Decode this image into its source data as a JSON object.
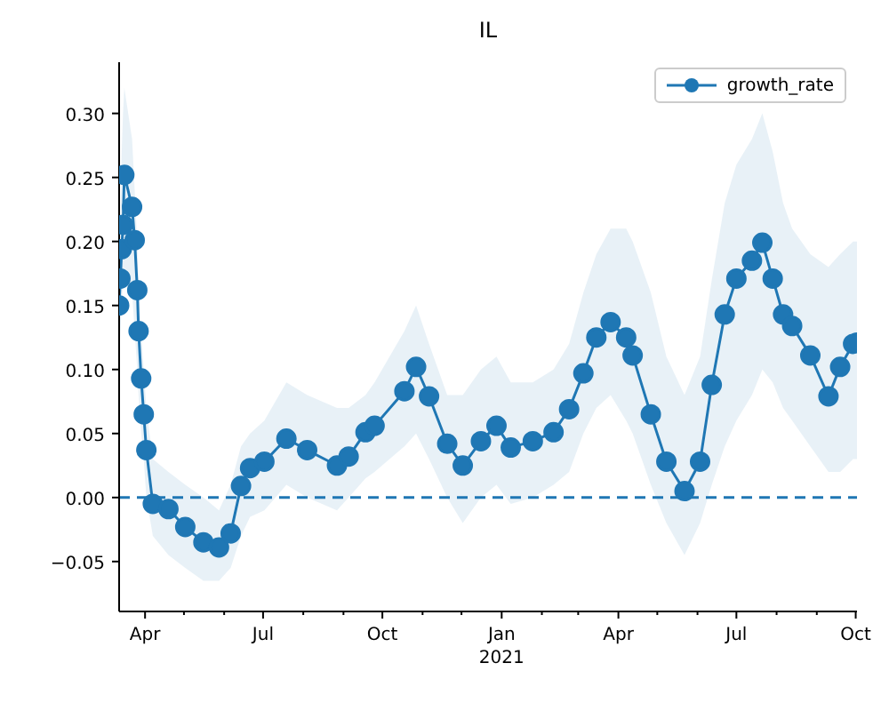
{
  "chart_data": {
    "type": "line",
    "title": "IL",
    "x": [
      "2020-03-12",
      "2020-03-13",
      "2020-03-14",
      "2020-03-15",
      "2020-03-16",
      "2020-03-22",
      "2020-03-24",
      "2020-03-26",
      "2020-03-27",
      "2020-03-29",
      "2020-03-31",
      "2020-04-02",
      "2020-04-07",
      "2020-04-19",
      "2020-05-02",
      "2020-05-16",
      "2020-05-28",
      "2020-06-06",
      "2020-06-14",
      "2020-06-21",
      "2020-07-02",
      "2020-07-19",
      "2020-08-04",
      "2020-08-27",
      "2020-09-05",
      "2020-09-18",
      "2020-09-25",
      "2020-10-18",
      "2020-10-27",
      "2020-11-06",
      "2020-11-20",
      "2020-12-02",
      "2020-12-16",
      "2020-12-28",
      "2021-01-08",
      "2021-01-25",
      "2021-02-10",
      "2021-02-22",
      "2021-03-05",
      "2021-03-15",
      "2021-03-26",
      "2021-04-07",
      "2021-04-12",
      "2021-04-26",
      "2021-05-08",
      "2021-05-22",
      "2021-06-03",
      "2021-06-12",
      "2021-06-22",
      "2021-07-01",
      "2021-07-13",
      "2021-07-21",
      "2021-07-29",
      "2021-08-06",
      "2021-08-13",
      "2021-08-27",
      "2021-09-10",
      "2021-09-19",
      "2021-09-29",
      "2021-10-02"
    ],
    "series": [
      {
        "name": "growth_rate",
        "color": "#1f77b4",
        "values": [
          0.15,
          0.171,
          0.194,
          0.213,
          0.252,
          0.227,
          0.201,
          0.162,
          0.13,
          0.093,
          0.065,
          0.037,
          -0.005,
          -0.009,
          -0.023,
          -0.035,
          -0.039,
          -0.028,
          0.009,
          0.023,
          0.028,
          0.046,
          0.037,
          0.025,
          0.032,
          0.051,
          0.056,
          0.083,
          0.102,
          0.079,
          0.042,
          0.025,
          0.044,
          0.056,
          0.039,
          0.044,
          0.051,
          0.069,
          0.097,
          0.125,
          0.137,
          0.125,
          0.111,
          0.065,
          0.028,
          0.005,
          0.028,
          0.088,
          0.143,
          0.171,
          0.185,
          0.199,
          0.171,
          0.143,
          0.134,
          0.111,
          0.079,
          0.102,
          0.12,
          0.121
        ],
        "lower": [
          0.11,
          0.13,
          0.15,
          0.17,
          0.18,
          0.16,
          0.13,
          0.1,
          0.08,
          0.05,
          0.03,
          0.0,
          -0.03,
          -0.045,
          -0.055,
          -0.065,
          -0.065,
          -0.055,
          -0.03,
          -0.015,
          -0.01,
          0.01,
          0.0,
          -0.01,
          0.0,
          0.015,
          0.02,
          0.04,
          0.05,
          0.03,
          0.0,
          -0.02,
          0.0,
          0.01,
          -0.005,
          0.0,
          0.01,
          0.02,
          0.05,
          0.07,
          0.08,
          0.06,
          0.05,
          0.01,
          -0.02,
          -0.045,
          -0.02,
          0.01,
          0.04,
          0.06,
          0.08,
          0.1,
          0.09,
          0.07,
          0.06,
          0.04,
          0.02,
          0.02,
          0.03,
          0.03
        ],
        "upper": [
          0.18,
          0.22,
          0.27,
          0.3,
          0.32,
          0.28,
          0.24,
          0.2,
          0.17,
          0.13,
          0.1,
          0.07,
          0.03,
          0.02,
          0.01,
          0.0,
          -0.01,
          0.01,
          0.04,
          0.05,
          0.06,
          0.09,
          0.08,
          0.07,
          0.07,
          0.08,
          0.09,
          0.13,
          0.15,
          0.12,
          0.08,
          0.08,
          0.1,
          0.11,
          0.09,
          0.09,
          0.1,
          0.12,
          0.16,
          0.19,
          0.21,
          0.21,
          0.2,
          0.16,
          0.11,
          0.08,
          0.11,
          0.17,
          0.23,
          0.26,
          0.28,
          0.3,
          0.27,
          0.23,
          0.21,
          0.19,
          0.18,
          0.19,
          0.2,
          0.2
        ]
      }
    ],
    "xlim": [
      "2020-03-12",
      "2021-10-02"
    ],
    "xticks": [
      {
        "value": "2020-04-01",
        "label": "Apr"
      },
      {
        "value": "2020-05-01",
        "label": null
      },
      {
        "value": "2020-06-01",
        "label": null
      },
      {
        "value": "2020-07-01",
        "label": "Jul"
      },
      {
        "value": "2020-08-01",
        "label": null
      },
      {
        "value": "2020-09-01",
        "label": null
      },
      {
        "value": "2020-10-01",
        "label": "Oct"
      },
      {
        "value": "2020-11-01",
        "label": null
      },
      {
        "value": "2020-12-01",
        "label": null
      },
      {
        "value": "2021-01-01",
        "label": "Jan\n2021"
      },
      {
        "value": "2021-02-01",
        "label": null
      },
      {
        "value": "2021-03-01",
        "label": null
      },
      {
        "value": "2021-04-01",
        "label": "Apr"
      },
      {
        "value": "2021-05-01",
        "label": null
      },
      {
        "value": "2021-06-01",
        "label": null
      },
      {
        "value": "2021-07-01",
        "label": "Jul"
      },
      {
        "value": "2021-08-01",
        "label": null
      },
      {
        "value": "2021-09-01",
        "label": null
      },
      {
        "value": "2021-10-01",
        "label": "Oct"
      }
    ],
    "ylim": [
      -0.089,
      0.34
    ],
    "yticks": [
      {
        "value": -0.05,
        "label": "−0.05"
      },
      {
        "value": 0,
        "label": "0.00"
      },
      {
        "value": 0.05,
        "label": "0.05"
      },
      {
        "value": 0.1,
        "label": "0.10"
      },
      {
        "value": 0.15,
        "label": "0.15"
      },
      {
        "value": 0.2,
        "label": "0.20"
      },
      {
        "value": 0.25,
        "label": "0.25"
      },
      {
        "value": 0.3,
        "label": "0.30"
      }
    ],
    "ref_lines": [
      {
        "axis": "y",
        "value": 0,
        "color": "#1f77b4",
        "line_style": "dashed"
      }
    ],
    "grid": false,
    "legend": "top right",
    "marker": "circle",
    "line_style": "solid"
  }
}
